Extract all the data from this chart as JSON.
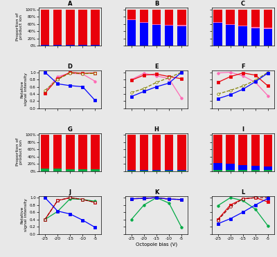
{
  "x": [
    -25,
    -20,
    -15,
    -10,
    -5
  ],
  "bar_A": {
    "red": [
      97,
      97,
      97,
      97,
      97
    ],
    "blue": [
      2,
      2,
      2,
      2,
      2
    ],
    "pink": [
      1,
      1,
      1,
      1,
      1
    ]
  },
  "bar_B": {
    "red": [
      28,
      35,
      40,
      42,
      43
    ],
    "blue": [
      70,
      63,
      58,
      55,
      54
    ],
    "pink": [
      2,
      2,
      2,
      3,
      3
    ]
  },
  "bar_C": {
    "red": [
      35,
      40,
      45,
      48,
      50
    ],
    "blue": [
      63,
      58,
      53,
      49,
      47
    ],
    "pink": [
      2,
      2,
      2,
      3,
      3
    ]
  },
  "line_D": {
    "pink": [
      0.45,
      0.88,
      0.97,
      0.95,
      0.75
    ],
    "red": [
      0.42,
      0.82,
      1.0,
      0.97,
      0.98
    ],
    "dashed": [
      0.5,
      0.8,
      0.98,
      0.96,
      0.97
    ],
    "blue": [
      1.0,
      0.68,
      0.63,
      0.6,
      0.22
    ]
  },
  "line_E": {
    "pink": [
      0.8,
      0.97,
      0.9,
      0.82,
      0.28
    ],
    "red": [
      0.78,
      0.92,
      0.95,
      0.88,
      0.82
    ],
    "dashed": [
      0.44,
      0.55,
      0.72,
      0.85,
      1.0
    ],
    "blue": [
      0.33,
      0.47,
      0.6,
      0.7,
      1.0
    ]
  },
  "line_F": {
    "pink": [
      0.98,
      1.0,
      0.9,
      0.72,
      0.35
    ],
    "red": [
      0.72,
      0.88,
      0.98,
      0.92,
      0.62
    ],
    "dashed": [
      0.4,
      0.5,
      0.62,
      0.78,
      1.0
    ],
    "blue": [
      0.27,
      0.38,
      0.53,
      0.74,
      0.98
    ]
  },
  "bar_G": {
    "red": [
      93,
      93,
      95,
      94,
      94
    ],
    "blue": [
      0,
      0,
      0,
      0,
      0
    ],
    "green": [
      7,
      7,
      5,
      6,
      6
    ]
  },
  "bar_H": {
    "red": [
      97,
      97,
      97,
      97,
      97
    ],
    "blue": [
      2,
      2,
      2,
      2,
      2
    ],
    "green": [
      1,
      1,
      1,
      1,
      1
    ]
  },
  "bar_I": {
    "red": [
      78,
      80,
      83,
      85,
      87
    ],
    "blue": [
      18,
      16,
      14,
      12,
      10
    ],
    "green": [
      4,
      4,
      3,
      3,
      3
    ]
  },
  "line_J": {
    "red": [
      0.4,
      0.92,
      1.0,
      0.95,
      0.87
    ],
    "green": [
      0.4,
      0.62,
      0.97,
      0.95,
      0.9
    ],
    "dashed": [
      0.4,
      0.92,
      1.0,
      0.95,
      0.87
    ],
    "blue": [
      1.0,
      0.63,
      0.55,
      0.38,
      0.18
    ]
  },
  "line_K": {
    "red": [
      0.97,
      0.98,
      1.0,
      0.96,
      0.95
    ],
    "green": [
      0.4,
      0.8,
      1.0,
      0.85,
      0.18
    ],
    "dashed": [
      0.97,
      0.98,
      1.0,
      0.96,
      0.95
    ],
    "blue": [
      0.97,
      0.98,
      1.0,
      0.96,
      0.95
    ]
  },
  "line_L": {
    "red": [
      0.4,
      0.8,
      0.97,
      1.0,
      0.88
    ],
    "green": [
      0.78,
      1.0,
      0.92,
      0.68,
      0.22
    ],
    "dashed": [
      0.38,
      0.75,
      0.97,
      1.0,
      1.0
    ],
    "blue": [
      0.28,
      0.42,
      0.6,
      0.8,
      0.98
    ]
  },
  "colors": {
    "red": "#e8000b",
    "blue": "#0000ff",
    "pink": "#ff69b4",
    "green": "#00aa44",
    "dkred": "#8b0000",
    "olive": "#808000"
  },
  "bg_color": "#e8e8e8"
}
